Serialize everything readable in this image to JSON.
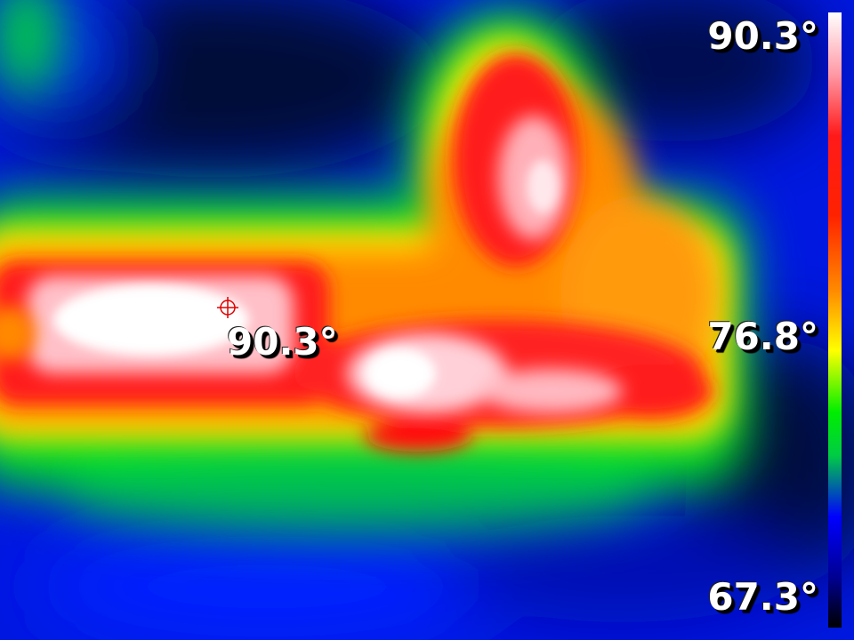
{
  "scale": {
    "max_label": "90.3°",
    "mid_label": "76.8°",
    "min_label": "67.3°"
  },
  "spot": {
    "label": "90.3°",
    "marker_color": "#e00000"
  },
  "palette": {
    "hot": "#ffffff",
    "warm": "#ff2200",
    "mid": "#ffff00",
    "cool": "#00ee00",
    "cold": "#0000ff",
    "coldest": "#000000"
  }
}
